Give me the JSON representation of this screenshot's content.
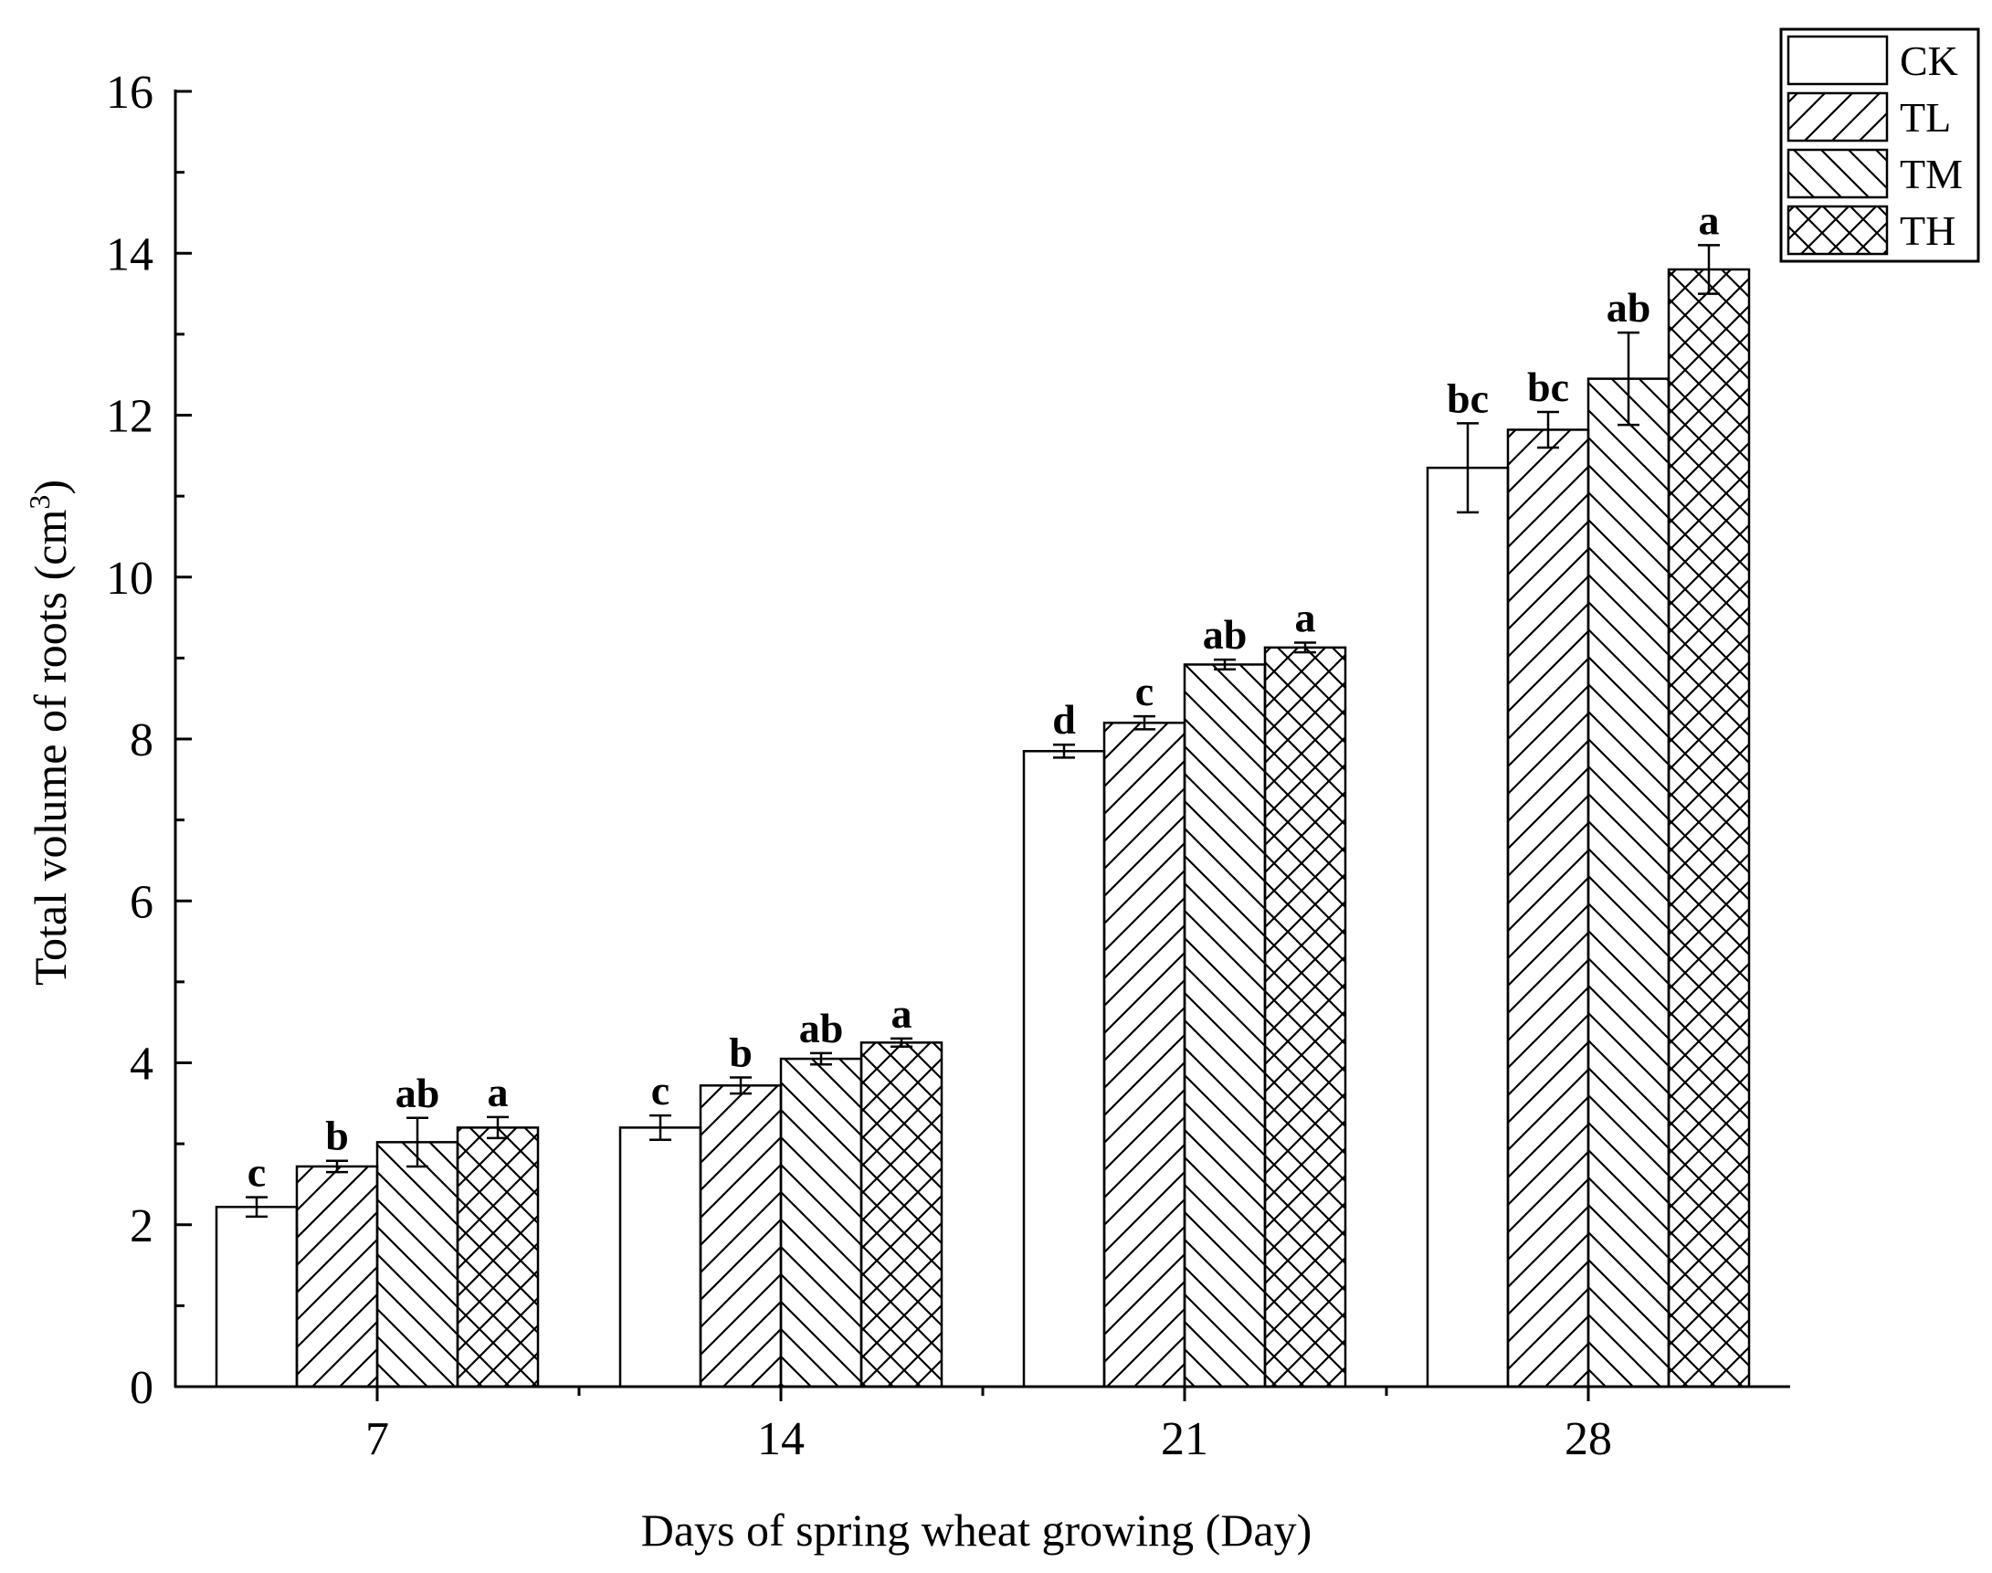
{
  "chart_data": {
    "type": "bar",
    "title": "",
    "xlabel": "Days of spring wheat growing (Day)",
    "ylabel_main": "Total volume of roots (cm",
    "ylabel_sup": "3",
    "ylabel_close": ")",
    "ylim": [
      0,
      16
    ],
    "yticks": [
      0,
      2,
      4,
      6,
      8,
      10,
      12,
      14,
      16
    ],
    "categories": [
      "7",
      "14",
      "21",
      "28"
    ],
    "legend_position": "top-right",
    "series": [
      {
        "name": "CK",
        "pattern": "none",
        "values": [
          2.22,
          3.2,
          7.85,
          11.35
        ],
        "errors": [
          0.12,
          0.15,
          0.08,
          0.55
        ],
        "labels": [
          "c",
          "c",
          "d",
          "bc"
        ]
      },
      {
        "name": "TL",
        "pattern": "diagonal-up",
        "values": [
          2.72,
          3.72,
          8.2,
          11.82
        ],
        "errors": [
          0.07,
          0.1,
          0.08,
          0.22
        ],
        "labels": [
          "b",
          "b",
          "c",
          "bc"
        ]
      },
      {
        "name": "TM",
        "pattern": "diagonal-down",
        "values": [
          3.02,
          4.05,
          8.92,
          12.45
        ],
        "errors": [
          0.3,
          0.07,
          0.06,
          0.57
        ],
        "labels": [
          "ab",
          "ab",
          "ab",
          "ab"
        ]
      },
      {
        "name": "TH",
        "pattern": "crosshatch",
        "values": [
          3.2,
          4.25,
          9.13,
          13.8
        ],
        "errors": [
          0.13,
          0.05,
          0.06,
          0.3
        ],
        "labels": [
          "a",
          "a",
          "a",
          "a"
        ]
      }
    ]
  }
}
